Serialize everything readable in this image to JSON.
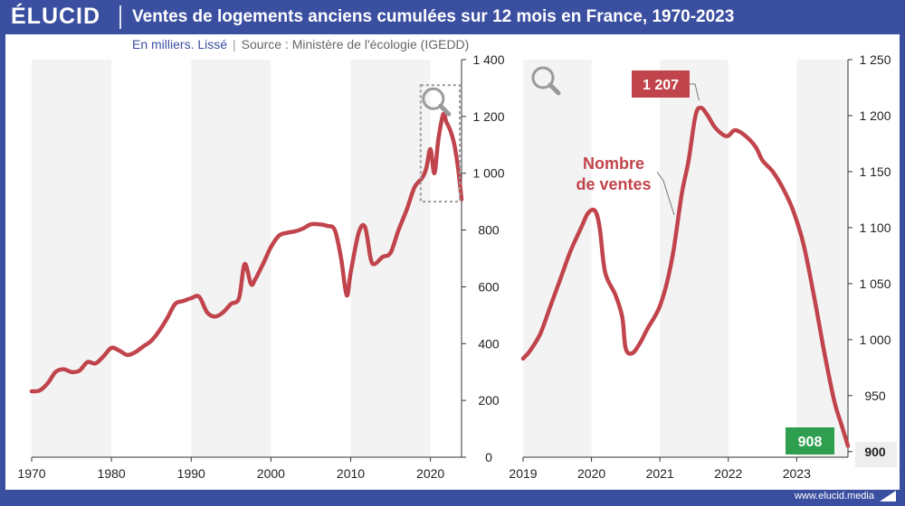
{
  "header": {
    "logo": "ÉLUCID",
    "title": "Ventes de logements anciens cumulées sur 12 mois en France, 1970-2023"
  },
  "subtitle": {
    "units": "En milliers. Lissé",
    "separator": "|",
    "source": "Source : Ministère de l'écologie (IGEDD)"
  },
  "footer": {
    "site": "www.elucid.media"
  },
  "colors": {
    "brand": "#3b4fa0",
    "line": "#c1444c",
    "peak_badge": "#c1444c",
    "last_badge": "#2e9e4f",
    "band": "#f3f3f3"
  },
  "icons": [
    "magnifier-icon"
  ],
  "chart_data": [
    {
      "type": "line",
      "title": "",
      "xlabel": "",
      "ylabel": "",
      "xlim": [
        1970,
        2023.9
      ],
      "ylim": [
        0,
        1400
      ],
      "x_ticks": [
        "1970",
        "1980",
        "1990",
        "2000",
        "2010",
        "2020"
      ],
      "y_ticks": [
        "0",
        "200",
        "400",
        "600",
        "800",
        "1 000",
        "1 200",
        "1 400"
      ],
      "y_axis_side": "right",
      "grid": "alternating vertical bands",
      "zoom_box": {
        "x": [
          2019,
          2023.9
        ],
        "y": [
          900,
          1310
        ]
      },
      "series": [
        {
          "x": [
            1970,
            1971,
            1972,
            1973,
            1974,
            1975,
            1976,
            1977,
            1978,
            1979,
            1980,
            1981,
            1982,
            1983,
            1984,
            1985,
            1986,
            1987,
            1988,
            1989,
            1990,
            1991,
            1992,
            1993,
            1994,
            1995,
            1996,
            1996.7,
            1997.5,
            1998,
            1999,
            2000,
            2001,
            2002,
            2003,
            2004,
            2005,
            2006,
            2007,
            2008,
            2008.8,
            2009.5,
            2010,
            2011,
            2011.8,
            2012.5,
            2013,
            2014,
            2015,
            2016,
            2017,
            2018,
            2019,
            2019.5,
            2020,
            2020.5,
            2021,
            2021.6,
            2022,
            2022.5,
            2023,
            2023.5,
            2023.9
          ],
          "y": [
            232,
            235,
            260,
            300,
            310,
            300,
            305,
            335,
            330,
            355,
            385,
            375,
            360,
            370,
            390,
            410,
            445,
            490,
            540,
            550,
            560,
            565,
            510,
            495,
            510,
            540,
            560,
            680,
            610,
            625,
            680,
            740,
            780,
            790,
            795,
            805,
            820,
            820,
            815,
            800,
            700,
            570,
            650,
            790,
            810,
            700,
            680,
            705,
            720,
            800,
            870,
            950,
            985,
            1020,
            1085,
            1000,
            1120,
            1207,
            1180,
            1150,
            1100,
            1010,
            908
          ]
        }
      ]
    },
    {
      "type": "line",
      "title": "",
      "xlabel": "",
      "ylabel": "Nombre\nde ventes",
      "series_label_lines": [
        "Nombre",
        "de ventes"
      ],
      "xlim": [
        2019,
        2023.75
      ],
      "ylim": [
        895,
        1250
      ],
      "x_ticks": [
        "2019",
        "2020",
        "2021",
        "2022",
        "2023"
      ],
      "y_ticks": [
        "900",
        "950",
        "1 000",
        "1 050",
        "1 100",
        "1 150",
        "1 200",
        "1 250"
      ],
      "y_axis_side": "right",
      "grid": "alternating vertical bands",
      "annotations": [
        {
          "text": "1 207",
          "x": 2021.6,
          "y": 1207,
          "color": "#c1444c"
        },
        {
          "text": "908",
          "x": 2023.75,
          "y": 908,
          "color": "#2e9e4f"
        }
      ],
      "series": [
        {
          "x": [
            2019,
            2019.1,
            2019.25,
            2019.4,
            2019.55,
            2019.7,
            2019.85,
            2019.95,
            2020.05,
            2020.12,
            2020.2,
            2020.35,
            2020.45,
            2020.5,
            2020.6,
            2020.72,
            2020.82,
            2020.92,
            2021,
            2021.1,
            2021.2,
            2021.32,
            2021.42,
            2021.52,
            2021.6,
            2021.7,
            2021.8,
            2021.92,
            2022,
            2022.1,
            2022.25,
            2022.4,
            2022.5,
            2022.65,
            2022.8,
            2022.95,
            2023.1,
            2023.25,
            2023.4,
            2023.55,
            2023.65,
            2023.75
          ],
          "y": [
            983,
            990,
            1005,
            1030,
            1055,
            1080,
            1100,
            1113,
            1115,
            1100,
            1060,
            1040,
            1020,
            992,
            988,
            998,
            1010,
            1020,
            1030,
            1050,
            1080,
            1130,
            1160,
            1200,
            1207,
            1200,
            1190,
            1183,
            1182,
            1187,
            1182,
            1172,
            1160,
            1150,
            1135,
            1115,
            1085,
            1040,
            990,
            945,
            925,
            905
          ]
        }
      ]
    }
  ]
}
